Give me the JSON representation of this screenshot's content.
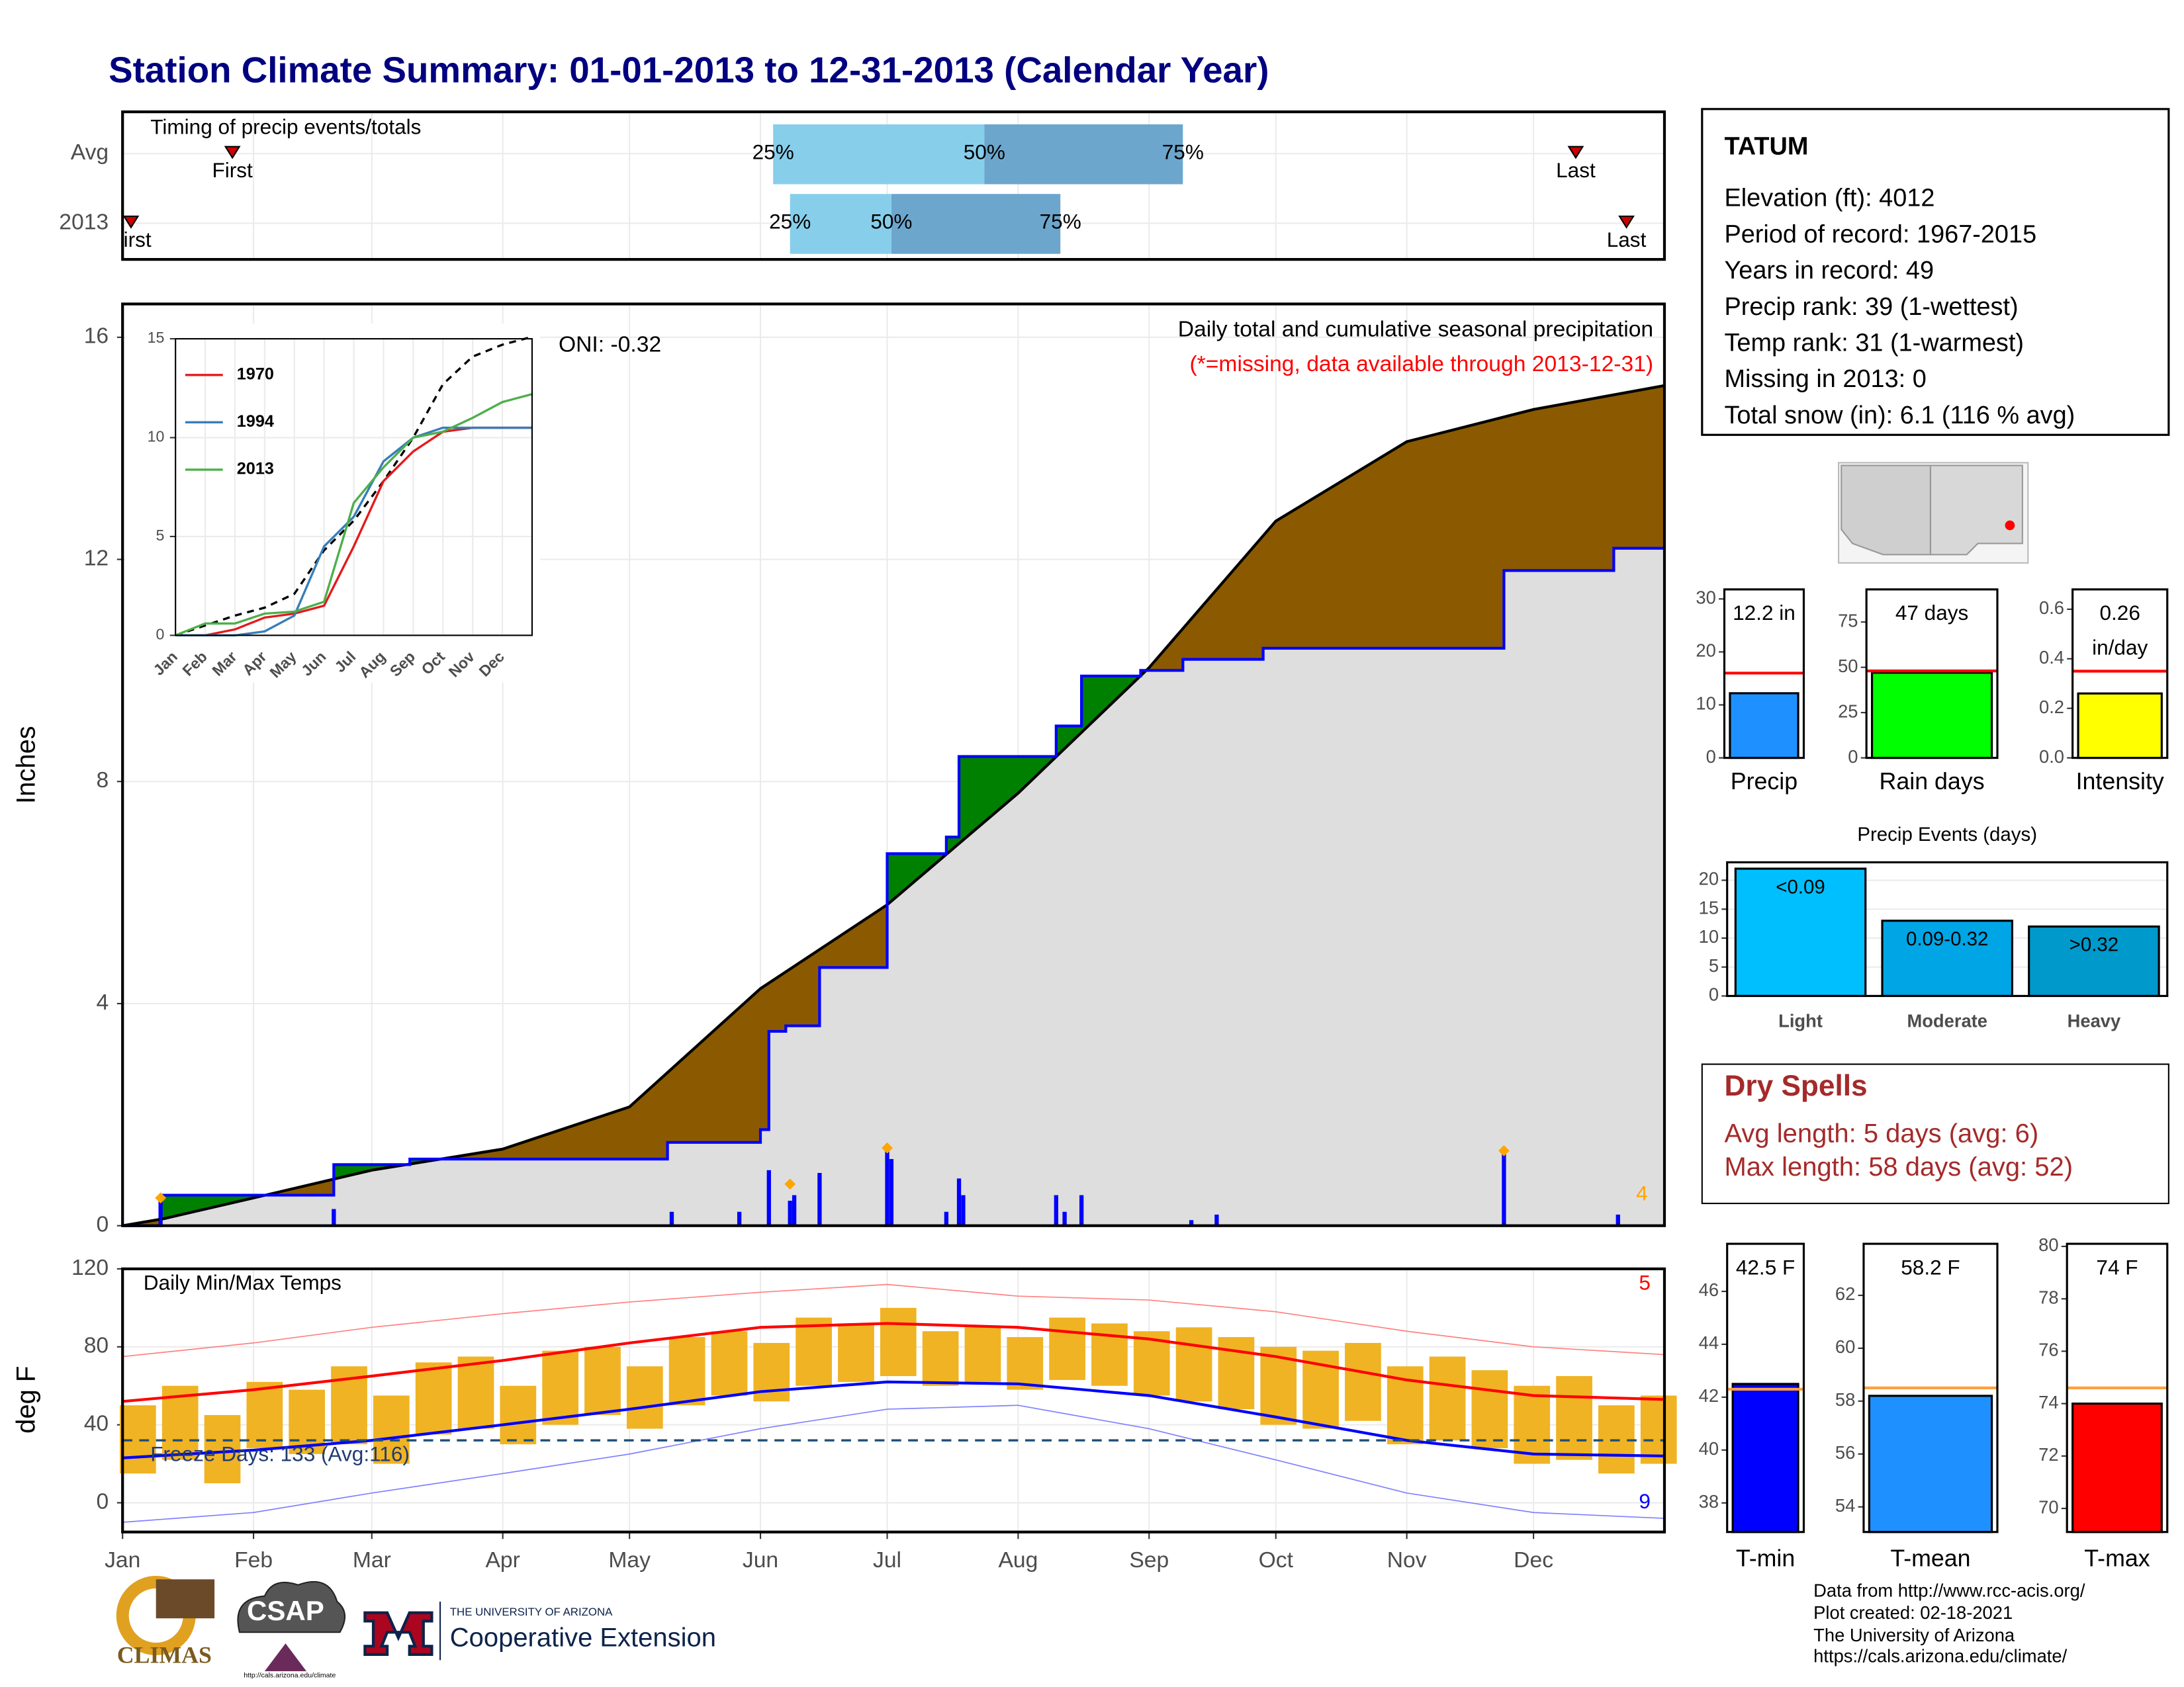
{
  "title": "Station Climate Summary: 01-01-2013 to 12-31-2013 (Calendar Year)",
  "station": {
    "name": "TATUM",
    "lines": [
      "Elevation (ft): 4012",
      "Period of record: 1967-2015",
      "Years in record: 49",
      "Precip rank: 39 (1-wettest)",
      "Temp rank: 31 (1-warmest)",
      "Missing in 2013: 0",
      "Total snow (in): 6.1 (116 % avg)"
    ]
  },
  "dry_spells": {
    "title": "Dry Spells",
    "lines": [
      "Avg length: 5 days (avg: 6)",
      "Max length: 58 days (avg: 52)"
    ]
  },
  "footer": {
    "credits": [
      "Data from http://www.rcc-acis.org/",
      "Plot created: 02-18-2021",
      "The University of Arizona",
      "https://cals.arizona.edu/climate/"
    ],
    "logos": [
      "CLIMAS",
      "CSAP",
      "http://cals.arizona.edu/climate",
      "THE UNIVERSITY OF ARIZONA",
      "Cooperative Extension"
    ]
  },
  "chart_data": [
    {
      "type": "timing",
      "title": "Timing of precip events/totals",
      "categories": [
        "Avg",
        "2013"
      ],
      "xlim": [
        0,
        365
      ],
      "quartile_labels": [
        "25%",
        "50%",
        "75%"
      ],
      "quartiles": [
        [
          154,
          204,
          251
        ],
        [
          158,
          182,
          222
        ]
      ],
      "first": [
        26,
        2
      ],
      "last": [
        344,
        356
      ],
      "first_label": "First",
      "last_label": "Last",
      "colors": [
        "#87ceeb",
        "#6ca6cd"
      ],
      "marker_color": "#cc0000"
    },
    {
      "type": "cumulative",
      "title": "Daily total and cumulative seasonal precipitation",
      "subtitle": "(*=missing, data available through 2013-12-31)",
      "annotation": "ONI: -0.32",
      "record_count": 4,
      "y_label": "Inches",
      "xlim": [
        0,
        365
      ],
      "ylim": [
        0,
        16.6
      ],
      "yticks": [
        0,
        4,
        8,
        12,
        16
      ],
      "avg": {
        "x": [
          0,
          10,
          31,
          59,
          90,
          120,
          151,
          181,
          212,
          243,
          273,
          304,
          334,
          365
        ],
        "values": [
          0,
          0.13,
          0.5,
          1.0,
          1.38,
          2.14,
          4.27,
          5.78,
          7.79,
          10.05,
          12.69,
          14.12,
          14.7,
          15.13
        ],
        "color": "#000000"
      },
      "year": {
        "x": [
          0,
          9,
          50,
          68,
          129,
          151,
          153,
          157,
          165,
          181,
          195,
          198,
          221,
          227,
          241,
          251,
          270,
          327,
          353,
          365
        ],
        "values": [
          0,
          0.55,
          1.1,
          1.2,
          1.5,
          1.73,
          3.5,
          3.6,
          4.65,
          6.7,
          7.0,
          8.45,
          9.0,
          9.9,
          10.0,
          10.2,
          10.4,
          11.8,
          12.2,
          12.2
        ],
        "color": "#0000ff"
      },
      "daily": {
        "x": [
          9,
          50,
          130,
          146,
          153,
          158,
          159,
          165,
          181,
          182,
          195,
          198,
          199,
          221,
          223,
          227,
          253,
          259,
          327,
          354
        ],
        "values": [
          0.5,
          0.3,
          0.25,
          0.25,
          1.0,
          0.45,
          0.55,
          0.95,
          1.35,
          1.2,
          0.25,
          0.85,
          0.55,
          0.55,
          0.25,
          0.55,
          0.1,
          0.2,
          1.3,
          0.2
        ],
        "color": "#0000ff"
      },
      "records": {
        "x": [
          9,
          158,
          181,
          327
        ],
        "values": [
          0.5,
          0.75,
          1.4,
          1.35
        ],
        "color": "#ffa500"
      },
      "colors": {
        "above": "#8b5a00",
        "below": "#008000",
        "base": "#dedede"
      }
    },
    {
      "type": "line",
      "xlim": [
        0,
        12
      ],
      "ylim": [
        0,
        15
      ],
      "xticks": [
        {
          "value": 0,
          "label": "Jan"
        },
        {
          "value": 1,
          "label": "Feb"
        },
        {
          "value": 2,
          "label": "Mar"
        },
        {
          "value": 3,
          "label": "Apr"
        },
        {
          "value": 4,
          "label": "May"
        },
        {
          "value": 5,
          "label": "Jun"
        },
        {
          "value": 6,
          "label": "Jul"
        },
        {
          "value": 7,
          "label": "Aug"
        },
        {
          "value": 8,
          "label": "Sep"
        },
        {
          "value": 9,
          "label": "Oct"
        },
        {
          "value": 10,
          "label": "Nov"
        },
        {
          "value": 11,
          "label": "Dec"
        }
      ],
      "yticks": [
        0,
        5,
        10,
        15
      ],
      "x": [
        0,
        1,
        2,
        3,
        4,
        5,
        6,
        7,
        8,
        9,
        10,
        11,
        12
      ],
      "series": [
        {
          "name": "1970",
          "color": "#e41a1c",
          "values": [
            0,
            0,
            0.3,
            0.9,
            1.1,
            1.5,
            4.5,
            7.8,
            9.3,
            10.3,
            10.5,
            10.5,
            10.5
          ]
        },
        {
          "name": "1994",
          "color": "#377eb8",
          "values": [
            0,
            0,
            0,
            0.2,
            1.0,
            4.5,
            6.0,
            8.8,
            10.0,
            10.5,
            10.5,
            10.5,
            10.5
          ]
        },
        {
          "name": "2013",
          "color": "#4daf4a",
          "values": [
            0,
            0.6,
            0.6,
            1.1,
            1.2,
            1.7,
            6.7,
            8.5,
            10.0,
            10.3,
            11.0,
            11.8,
            12.2
          ]
        }
      ],
      "reference": {
        "values": [
          0,
          0.5,
          1.0,
          1.4,
          2.1,
          4.3,
          5.8,
          7.8,
          10.0,
          12.7,
          14.1,
          14.7,
          15.1
        ],
        "color": "#000000"
      }
    },
    {
      "type": "temperature",
      "title": "Daily Min/Max Temps",
      "y_label": "deg F",
      "annotation": "Freeze Days: 133 (Avg:116)",
      "freeze": 32,
      "high_records": 5,
      "low_records": 9,
      "xlim": [
        0,
        365
      ],
      "xticks": [
        {
          "value": 0,
          "label": "Jan"
        },
        {
          "value": 31,
          "label": "Feb"
        },
        {
          "value": 59,
          "label": "Mar"
        },
        {
          "value": 90,
          "label": "Apr"
        },
        {
          "value": 120,
          "label": "May"
        },
        {
          "value": 151,
          "label": "Jun"
        },
        {
          "value": 181,
          "label": "Jul"
        },
        {
          "value": 212,
          "label": "Aug"
        },
        {
          "value": 243,
          "label": "Sep"
        },
        {
          "value": 273,
          "label": "Oct"
        },
        {
          "value": 304,
          "label": "Nov"
        },
        {
          "value": 334,
          "label": "Dec"
        }
      ],
      "ylim": [
        -15,
        120
      ],
      "yticks": [
        0,
        40,
        80,
        120
      ],
      "daily": {
        "x": [
          0,
          10,
          20,
          30,
          40,
          50,
          60,
          70,
          80,
          90,
          100,
          110,
          120,
          130,
          140,
          150,
          160,
          170,
          180,
          190,
          200,
          210,
          220,
          230,
          240,
          250,
          260,
          270,
          280,
          290,
          300,
          310,
          320,
          330,
          340,
          350,
          360
        ],
        "max": [
          50,
          60,
          45,
          62,
          58,
          70,
          55,
          72,
          75,
          60,
          78,
          80,
          70,
          85,
          88,
          82,
          95,
          92,
          100,
          88,
          90,
          85,
          95,
          92,
          88,
          90,
          85,
          80,
          78,
          82,
          70,
          75,
          68,
          60,
          65,
          50,
          55
        ],
        "min": [
          15,
          22,
          10,
          28,
          25,
          30,
          20,
          35,
          38,
          30,
          40,
          45,
          38,
          50,
          55,
          52,
          60,
          62,
          65,
          60,
          62,
          58,
          63,
          60,
          55,
          52,
          48,
          40,
          38,
          42,
          30,
          32,
          28,
          20,
          22,
          15,
          20
        ],
        "color": "#f0b323"
      },
      "normal_max": {
        "x": [
          0,
          31,
          59,
          90,
          120,
          151,
          181,
          212,
          243,
          273,
          304,
          334,
          365
        ],
        "values": [
          52,
          58,
          65,
          73,
          82,
          90,
          92,
          90,
          84,
          75,
          63,
          55,
          53
        ],
        "color": "#ff0000"
      },
      "normal_min": {
        "x": [
          0,
          31,
          59,
          90,
          120,
          151,
          181,
          212,
          243,
          273,
          304,
          334,
          365
        ],
        "values": [
          23,
          27,
          32,
          40,
          48,
          57,
          62,
          61,
          55,
          44,
          32,
          25,
          24
        ],
        "color": "#0000ff"
      },
      "record_max": {
        "x": [
          0,
          31,
          59,
          90,
          120,
          151,
          181,
          212,
          243,
          273,
          304,
          334,
          365
        ],
        "values": [
          75,
          82,
          90,
          97,
          103,
          108,
          112,
          106,
          104,
          98,
          88,
          80,
          76
        ],
        "color": "#ff8080"
      },
      "record_min": {
        "x": [
          0,
          31,
          59,
          90,
          120,
          151,
          181,
          212,
          243,
          273,
          304,
          334,
          365
        ],
        "values": [
          -10,
          -5,
          5,
          15,
          25,
          38,
          48,
          50,
          38,
          22,
          5,
          -5,
          -8
        ],
        "color": "#8080ff"
      }
    },
    {
      "type": "bar",
      "categories": [
        "Precip"
      ],
      "values": [
        12.2
      ],
      "value_labels": [
        "12.2 in"
      ],
      "reference": 16,
      "color": "#1e90ff",
      "reference_color": "#ff0000",
      "ylim": [
        0,
        31.8
      ],
      "yticks": [
        0,
        10,
        20,
        30
      ]
    },
    {
      "type": "bar",
      "categories": [
        "Rain days"
      ],
      "values": [
        47
      ],
      "value_labels": [
        "47 days"
      ],
      "reference": 48,
      "color": "#00ff00",
      "reference_color": "#ff0000",
      "ylim": [
        0,
        93
      ],
      "yticks": [
        0,
        25,
        50,
        75
      ]
    },
    {
      "type": "bar",
      "categories": [
        "Intensity"
      ],
      "values": [
        0.26
      ],
      "value_labels": [
        "0.26"
      ],
      "unit": "in/day",
      "reference": 0.35,
      "color": "#ffff00",
      "reference_color": "#ff0000",
      "ylim": [
        0,
        0.68
      ],
      "yticks": [
        {
          "value": 0,
          "label": "0.0"
        },
        0.2,
        0.4,
        0.6
      ]
    },
    {
      "type": "bar",
      "title": "Precip Events (days)",
      "categories": [
        "Light",
        "Moderate",
        "Heavy"
      ],
      "values": [
        22,
        13,
        12
      ],
      "bin_labels": [
        "<0.09",
        "0.09-0.32",
        ">0.32"
      ],
      "colors": [
        "#00bfff",
        "#00a5e5",
        "#0099cc"
      ],
      "ylim": [
        0,
        23.1
      ],
      "yticks": [
        0,
        5,
        10,
        15,
        20
      ],
      "grid": true
    },
    {
      "type": "bar",
      "categories": [
        "T-min"
      ],
      "values": [
        42.5
      ],
      "value_labels": [
        "42.5 F"
      ],
      "reference": 42.3,
      "color": "#0000ff",
      "reference_color": "#ffa040",
      "ylim": [
        36.9,
        47.8
      ],
      "yticks": [
        38,
        40,
        42,
        44,
        46
      ]
    },
    {
      "type": "bar",
      "categories": [
        "T-mean"
      ],
      "values": [
        58.2
      ],
      "value_labels": [
        "58.2 F"
      ],
      "reference": 58.5,
      "color": "#1e90ff",
      "reference_color": "#ffa040",
      "ylim": [
        53.05,
        63.95
      ],
      "yticks": [
        54,
        56,
        58,
        60,
        62
      ]
    },
    {
      "type": "bar",
      "categories": [
        "T-max"
      ],
      "values": [
        74
      ],
      "value_labels": [
        "74 F"
      ],
      "reference": 74.6,
      "color": "#ff0000",
      "reference_color": "#ffa040",
      "ylim": [
        69.1,
        80.1
      ],
      "yticks": [
        70,
        72,
        74,
        76,
        78,
        80
      ]
    }
  ]
}
